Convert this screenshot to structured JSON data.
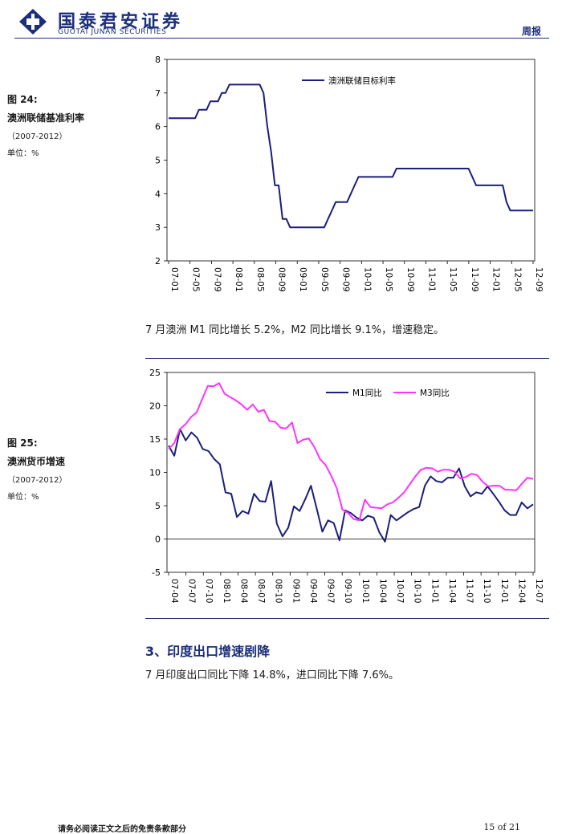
{
  "header": {
    "company_cn": "国泰君安证券",
    "company_en": "GUOTAI JUNAN SECURITIES",
    "report_type": "周报"
  },
  "figure24": {
    "number": "图 24:",
    "caption": "澳洲联储基准利率",
    "period": "（2007-2012）",
    "unit": "单位：%"
  },
  "paragraph1": "7 月澳洲 M1 同比增长 5.2%，M2 同比增长 9.1%，增速稳定。",
  "figure25": {
    "number": "图 25:",
    "caption": "澳洲货币增速",
    "period": "（2007-2012）",
    "unit": "单位：%"
  },
  "section3": {
    "title": "3、印度出口增速剧降",
    "text": "7 月印度出口同比下降 14.8%，进口同比下降 7.6%。"
  },
  "footer": {
    "disclaimer": "请务必阅读正文之后的免责条款部分",
    "page": "15 of 21"
  },
  "colors": {
    "brand_navy": "#1c2f7a",
    "m1_line": "#1c1f7a",
    "m3_line": "#ff33ff"
  },
  "chart_data": [
    {
      "type": "line",
      "ylim": [
        2,
        8
      ],
      "yticks": [
        2,
        3,
        4,
        5,
        6,
        7,
        8
      ],
      "x_tick_labels": [
        "07-01",
        "07-05",
        "07-09",
        "08-01",
        "08-05",
        "08-09",
        "09-01",
        "09-05",
        "09-09",
        "10-01",
        "10-05",
        "10-09",
        "11-01",
        "11-05",
        "11-09",
        "12-01",
        "12-05",
        "12-09"
      ],
      "legend_position": "top-right",
      "series": [
        {
          "name": "澳洲联储目标利率",
          "color": "#1c1f7a",
          "values": [
            6.25,
            6.25,
            6.25,
            6.25,
            6.25,
            6.25,
            6.25,
            6.25,
            6.5,
            6.5,
            6.5,
            6.75,
            6.75,
            6.75,
            7.0,
            7.0,
            7.25,
            7.25,
            7.25,
            7.25,
            7.25,
            7.25,
            7.25,
            7.25,
            7.25,
            7.0,
            6.0,
            5.25,
            4.25,
            4.25,
            3.25,
            3.25,
            3.0,
            3.0,
            3.0,
            3.0,
            3.0,
            3.0,
            3.0,
            3.0,
            3.0,
            3.0,
            3.25,
            3.5,
            3.75,
            3.75,
            3.75,
            3.75,
            4.0,
            4.25,
            4.5,
            4.5,
            4.5,
            4.5,
            4.5,
            4.5,
            4.5,
            4.5,
            4.5,
            4.5,
            4.75,
            4.75,
            4.75,
            4.75,
            4.75,
            4.75,
            4.75,
            4.75,
            4.75,
            4.75,
            4.75,
            4.75,
            4.75,
            4.75,
            4.75,
            4.75,
            4.75,
            4.75,
            4.75,
            4.75,
            4.5,
            4.25,
            4.25,
            4.25,
            4.25,
            4.25,
            4.25,
            4.25,
            4.25,
            3.75,
            3.5,
            3.5,
            3.5,
            3.5,
            3.5,
            3.5,
            3.5
          ]
        }
      ]
    },
    {
      "type": "line",
      "ylim": [
        -5,
        25
      ],
      "yticks": [
        -5,
        0,
        5,
        10,
        15,
        20,
        25
      ],
      "x_tick_labels": [
        "07-04",
        "07-07",
        "07-10",
        "08-01",
        "08-04",
        "08-07",
        "08-10",
        "09-01",
        "09-04",
        "09-07",
        "09-10",
        "10-01",
        "10-04",
        "10-07",
        "10-10",
        "11-01",
        "11-04",
        "11-07",
        "11-10",
        "12-01",
        "12-04",
        "12-07"
      ],
      "legend_position": "top-right",
      "series": [
        {
          "name": "M1同比",
          "color": "#1c1f7a",
          "values": [
            14.0,
            12.5,
            16.5,
            14.8,
            16.0,
            15.2,
            13.5,
            13.2,
            12.0,
            11.2,
            7.0,
            6.8,
            3.3,
            4.2,
            3.8,
            6.8,
            5.7,
            5.6,
            8.7,
            2.3,
            0.4,
            1.7,
            4.9,
            4.2,
            6.0,
            8.0,
            4.6,
            1.1,
            2.8,
            2.4,
            -0.2,
            4.3,
            3.9,
            3.2,
            2.8,
            3.5,
            3.2,
            1.0,
            -0.4,
            3.6,
            2.8,
            3.4,
            4.0,
            4.5,
            4.8,
            8.0,
            9.4,
            8.7,
            8.5,
            9.2,
            9.2,
            10.6,
            7.9,
            6.4,
            7.0,
            6.8,
            7.9,
            6.8,
            5.6,
            4.3,
            3.6,
            3.6,
            5.5,
            4.6,
            5.2
          ]
        },
        {
          "name": "M3同比",
          "color": "#ff33ff",
          "values": [
            13.5,
            14.4,
            16.5,
            17.2,
            18.3,
            19.0,
            21.0,
            23.0,
            22.9,
            23.4,
            21.8,
            21.3,
            20.8,
            20.2,
            19.4,
            20.2,
            19.1,
            19.4,
            17.7,
            17.6,
            16.7,
            16.6,
            17.5,
            14.4,
            14.9,
            15.1,
            13.8,
            12.0,
            11.1,
            9.5,
            7.6,
            4.4,
            3.9,
            3.0,
            2.8,
            5.9,
            4.8,
            4.7,
            4.6,
            5.2,
            5.5,
            6.2,
            7.0,
            8.2,
            9.4,
            10.4,
            10.7,
            10.6,
            10.1,
            10.4,
            10.4,
            10.1,
            9.1,
            9.3,
            9.8,
            9.6,
            8.6,
            7.9,
            8.0,
            8.0,
            7.4,
            7.4,
            7.3,
            8.3,
            9.2,
            9.0
          ]
        }
      ]
    }
  ]
}
